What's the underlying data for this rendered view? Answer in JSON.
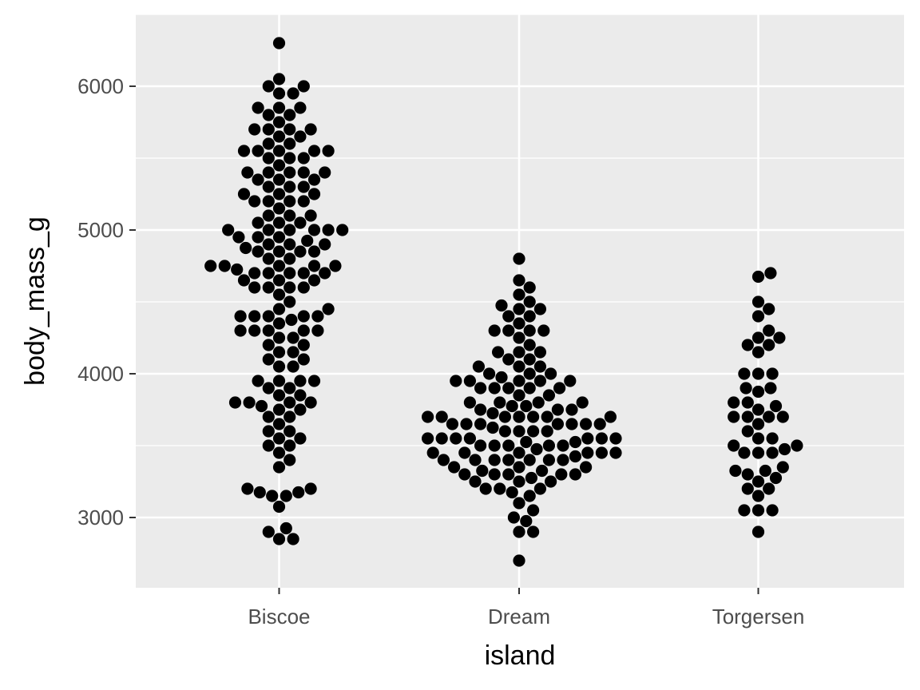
{
  "chart_data": {
    "type": "scatter",
    "subtype": "beeswarm",
    "xlabel": "island",
    "ylabel": "body_mass_g",
    "categories": [
      "Biscoe",
      "Dream",
      "Torgersen"
    ],
    "ylim": [
      2500,
      6500
    ],
    "yticks": [
      3000,
      4000,
      5000,
      6000
    ],
    "grid": true,
    "legend": "none",
    "colors": {
      "panel_background": "#ebebeb",
      "grid_line": "#ffffff",
      "point": "#000000",
      "tick_label": "#4d4d4d",
      "axis_title": "#000000"
    },
    "series": [
      {
        "category": "Biscoe",
        "values": [
          6300,
          6050,
          6000,
          6000,
          5950,
          5950,
          5850,
          5850,
          5850,
          5800,
          5800,
          5750,
          5700,
          5700,
          5700,
          5700,
          5650,
          5650,
          5600,
          5600,
          5550,
          5550,
          5550,
          5550,
          5550,
          5500,
          5500,
          5500,
          5450,
          5400,
          5400,
          5400,
          5400,
          5400,
          5350,
          5350,
          5350,
          5300,
          5300,
          5300,
          5250,
          5250,
          5250,
          5200,
          5200,
          5200,
          5200,
          5150,
          5100,
          5100,
          5100,
          5050,
          5050,
          5050,
          5000,
          5000,
          5000,
          5000,
          5000,
          5000,
          4950,
          4950,
          4950,
          4925,
          4900,
          4900,
          4900,
          4875,
          4850,
          4850,
          4850,
          4850,
          4800,
          4800,
          4750,
          4750,
          4750,
          4750,
          4750,
          4725,
          4700,
          4700,
          4700,
          4700,
          4700,
          4650,
          4650,
          4650,
          4600,
          4600,
          4600,
          4600,
          4550,
          4500,
          4450,
          4450,
          4400,
          4400,
          4400,
          4400,
          4400,
          4375,
          4350,
          4300,
          4300,
          4300,
          4300,
          4300,
          4250,
          4250,
          4200,
          4200,
          4150,
          4150,
          4100,
          4100,
          4050,
          4050,
          3950,
          3950,
          3950,
          3950,
          3900,
          3900,
          3850,
          3850,
          3800,
          3800,
          3800,
          3800,
          3775,
          3750,
          3750,
          3700,
          3700,
          3650,
          3600,
          3600,
          3550,
          3550,
          3500,
          3500,
          3450,
          3400,
          3350,
          3200,
          3200,
          3175,
          3175,
          3150,
          3150,
          3075,
          2925,
          2900,
          2850,
          2850
        ]
      },
      {
        "category": "Dream",
        "values": [
          4800,
          4650,
          4600,
          4550,
          4500,
          4475,
          4450,
          4450,
          4400,
          4400,
          4350,
          4300,
          4300,
          4300,
          4300,
          4250,
          4200,
          4150,
          4150,
          4150,
          4100,
          4100,
          4050,
          4050,
          4050,
          4000,
          4000,
          4000,
          3975,
          3950,
          3950,
          3950,
          3950,
          3950,
          3900,
          3900,
          3900,
          3900,
          3900,
          3850,
          3850,
          3800,
          3800,
          3800,
          3800,
          3775,
          3775,
          3750,
          3750,
          3750,
          3725,
          3700,
          3700,
          3700,
          3700,
          3700,
          3700,
          3700,
          3700,
          3650,
          3650,
          3650,
          3650,
          3650,
          3650,
          3650,
          3625,
          3600,
          3600,
          3600,
          3600,
          3550,
          3550,
          3550,
          3550,
          3550,
          3550,
          3550,
          3525,
          3525,
          3500,
          3500,
          3500,
          3500,
          3500,
          3475,
          3450,
          3450,
          3450,
          3450,
          3450,
          3450,
          3425,
          3400,
          3400,
          3400,
          3400,
          3400,
          3400,
          3400,
          3350,
          3350,
          3350,
          3325,
          3325,
          3300,
          3300,
          3300,
          3300,
          3300,
          3275,
          3250,
          3250,
          3250,
          3200,
          3200,
          3200,
          3175,
          3150,
          3100,
          3050,
          3000,
          2975,
          2900,
          2900,
          2700
        ]
      },
      {
        "category": "Torgersen",
        "values": [
          4700,
          4675,
          4500,
          4450,
          4400,
          4300,
          4250,
          4250,
          4200,
          4200,
          4150,
          4000,
          4000,
          4000,
          3900,
          3900,
          3875,
          3800,
          3800,
          3775,
          3750,
          3700,
          3700,
          3700,
          3700,
          3650,
          3600,
          3550,
          3550,
          3500,
          3500,
          3475,
          3450,
          3450,
          3450,
          3350,
          3325,
          3325,
          3300,
          3275,
          3250,
          3200,
          3200,
          3150,
          3050,
          3050,
          3050,
          2900
        ]
      }
    ]
  }
}
